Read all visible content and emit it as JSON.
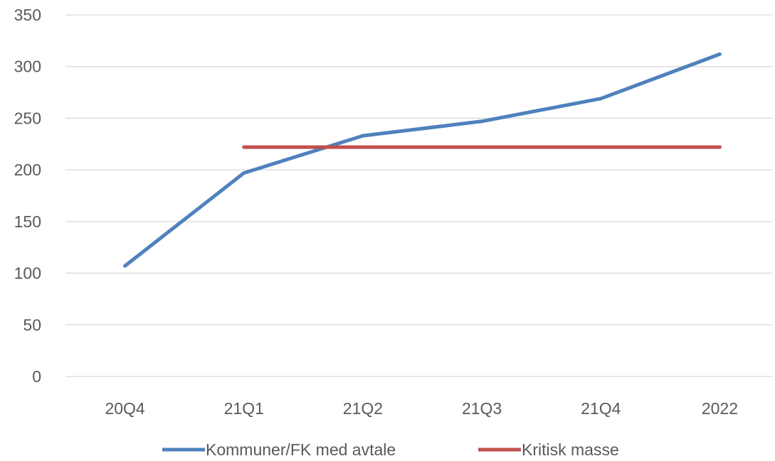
{
  "chart_data": {
    "type": "line",
    "title": "",
    "xlabel": "",
    "ylabel": "",
    "categories": [
      "20Q4",
      "21Q1",
      "21Q2",
      "21Q3",
      "21Q4",
      "2022"
    ],
    "ylim": [
      0,
      350
    ],
    "yticks": [
      0,
      50,
      100,
      150,
      200,
      250,
      300,
      350
    ],
    "grid": true,
    "legend_position": "bottom",
    "series": [
      {
        "name": "Kommuner/FK med avtale",
        "color": "#4F81BD",
        "values": [
          107,
          197,
          233,
          247,
          269,
          312
        ]
      },
      {
        "name": "Kritisk masse",
        "color": "#C0504D",
        "values": [
          null,
          222,
          222,
          222,
          222,
          222
        ]
      }
    ]
  }
}
